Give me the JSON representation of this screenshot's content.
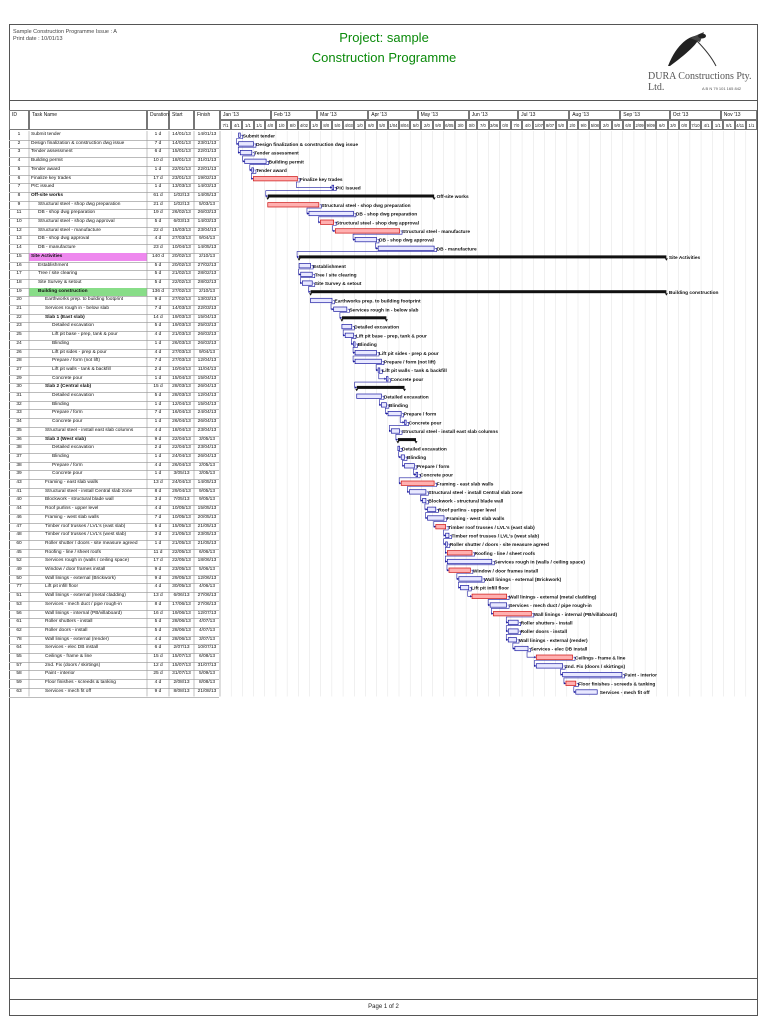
{
  "header": {
    "left_line1": "Sample Construction Programme  Issue : A",
    "left_line2": "Print date : 10/01/13",
    "title_line1": "Project: sample",
    "title_line2": "Construction Programme",
    "company": "DURA Constructions Pty. Ltd.",
    "abn": "A B N 79 101 165 842"
  },
  "columns": {
    "id": "ID",
    "name": "Task Name",
    "duration": "Duration",
    "start": "Start",
    "finish": "Finish"
  },
  "months": [
    "Jan '13",
    "Feb '13",
    "Mar '13",
    "Apr '13",
    "May '13",
    "Jun '13",
    "Jul '13",
    "Aug '13",
    "Sep '13",
    "Oct '13",
    "Nov '13"
  ],
  "weeks": [
    "7/1",
    "4/1",
    "1/1",
    "1/1",
    "4/0",
    "1/0",
    "8/0",
    "4/02",
    "1/0",
    "8/0",
    "5/0",
    "4/03",
    "1/0",
    "8/0",
    "5/0",
    "1/04",
    "8/04",
    "5/0",
    "2/0",
    "9/0",
    "6/05",
    "3/0",
    "0/0",
    "7/0",
    "3/06",
    "0/0",
    "7/0",
    "4/0",
    "1/07",
    "8/07",
    "5/0",
    "2/0",
    "9/0",
    "5/08",
    "2/0",
    "9/0",
    "6/0",
    "2/09",
    "9/09",
    "6/0",
    "3/0",
    "0/0",
    "7/10",
    "4/1",
    "1/1",
    "8/1",
    "4/11",
    "1/1"
  ],
  "tasks": [
    {
      "id": "1",
      "name": "Submit tender",
      "indent": 0,
      "dur": "1 d",
      "start": "14/01/13",
      "finish": "14/01/13",
      "label": "Submit tender",
      "s": 11.3,
      "e": 12.3,
      "kind": "task"
    },
    {
      "id": "2",
      "name": "Design finalization & construction dwg issue",
      "indent": 0,
      "dur": "7 d",
      "start": "14/01/13",
      "finish": "23/01/13",
      "label": "Design finalization & construction dwg issue",
      "s": 11.3,
      "e": 20.3,
      "kind": "task"
    },
    {
      "id": "3",
      "name": "Tender assessment",
      "indent": 0,
      "dur": "6 d",
      "start": "15/01/13",
      "finish": "22/01/13",
      "label": "Tender assessment",
      "s": 12.3,
      "e": 19.3,
      "kind": "task"
    },
    {
      "id": "4",
      "name": "Building permit",
      "indent": 0,
      "dur": "10 d",
      "start": "18/01/13",
      "finish": "31/01/13",
      "label": "Building permit",
      "s": 15,
      "e": 28,
      "kind": "task"
    },
    {
      "id": "5",
      "name": "Tender award",
      "indent": 0,
      "dur": "1 d",
      "start": "22/01/13",
      "finish": "22/01/13",
      "label": "Tender award",
      "s": 19.3,
      "e": 20.3,
      "kind": "task"
    },
    {
      "id": "6",
      "name": "Finalize key trades",
      "indent": 0,
      "dur": "17 d",
      "start": "23/01/13",
      "finish": "19/02/13",
      "label": "Finalize key trades",
      "s": 20.3,
      "e": 47,
      "kind": "crit"
    },
    {
      "id": "7",
      "name": "PIC issued",
      "indent": 0,
      "dur": "1 d",
      "start": "13/03/13",
      "finish": "14/03/13",
      "label": "PIC issued",
      "s": 68,
      "e": 69,
      "kind": "task"
    },
    {
      "id": "8",
      "name": "Off-site works",
      "indent": 0,
      "dur": "61 d",
      "start": "1/02/13",
      "finish": "14/05/13",
      "label": "Off-site works",
      "s": 29,
      "e": 130,
      "kind": "summary"
    },
    {
      "id": "9",
      "name": "Structural steel - shop dwg preparation",
      "indent": 1,
      "dur": "21 d",
      "start": "1/02/13",
      "finish": "5/03/13",
      "label": "Structural steel - shop dwg preparation",
      "s": 29,
      "e": 60,
      "kind": "crit"
    },
    {
      "id": "11",
      "name": "DB - shop dwg preparation",
      "indent": 1,
      "dur": "19 d",
      "start": "26/02/13",
      "finish": "26/03/13",
      "label": "DB - shop dwg preparation",
      "s": 54,
      "e": 81,
      "kind": "task"
    },
    {
      "id": "10",
      "name": "Structural steel - shop dwg approval",
      "indent": 1,
      "dur": "5 d",
      "start": "6/03/13",
      "finish": "14/03/13",
      "label": "Structural steel - shop dwg approval",
      "s": 61,
      "e": 69,
      "kind": "crit"
    },
    {
      "id": "12",
      "name": "Structural steel - manufacture",
      "indent": 1,
      "dur": "22 d",
      "start": "15/03/13",
      "finish": "23/04/13",
      "label": "Structural steel - manufacture",
      "s": 70,
      "e": 109,
      "kind": "crit"
    },
    {
      "id": "13",
      "name": "DB - shop dwg approval",
      "indent": 1,
      "dur": "4 d",
      "start": "27/03/13",
      "finish": "9/04/13",
      "label": "DB - shop dwg approval",
      "s": 82,
      "e": 95,
      "kind": "task"
    },
    {
      "id": "14",
      "name": "DB - manufacture",
      "indent": 1,
      "dur": "23 d",
      "start": "10/04/13",
      "finish": "14/05/13",
      "label": "DB - manufacture",
      "s": 96,
      "e": 130,
      "kind": "task"
    },
    {
      "id": "15",
      "name": "Site Activities",
      "indent": 0,
      "dur": "140 d",
      "start": "20/02/13",
      "finish": "2/10/13",
      "label": "Site Activities",
      "s": 48,
      "e": 271,
      "kind": "summary",
      "hl": "#ee88ee"
    },
    {
      "id": "16",
      "name": "Establishment",
      "indent": 1,
      "dur": "5 d",
      "start": "20/02/13",
      "finish": "27/02/13",
      "label": "Establishment",
      "s": 48,
      "e": 55,
      "kind": "task"
    },
    {
      "id": "17",
      "name": "Tree / site clearing",
      "indent": 1,
      "dur": "5 d",
      "start": "21/02/13",
      "finish": "28/02/13",
      "label": "Tree / site clearing",
      "s": 49,
      "e": 56,
      "kind": "task"
    },
    {
      "id": "18",
      "name": "Site Survey & setout",
      "indent": 1,
      "dur": "5 d",
      "start": "22/02/13",
      "finish": "28/02/13",
      "label": "Site Survey & setout",
      "s": 50,
      "e": 56,
      "kind": "task"
    },
    {
      "id": "19",
      "name": "Building construction",
      "indent": 1,
      "dur": "136 d",
      "start": "27/02/13",
      "finish": "2/10/13",
      "label": "Building construction",
      "s": 55,
      "e": 271,
      "kind": "summary",
      "hl": "#88dd88"
    },
    {
      "id": "20",
      "name": "Earthworks prep. to building footprint",
      "indent": 2,
      "dur": "9 d",
      "start": "27/02/13",
      "finish": "13/03/13",
      "label": "Earthworks prep. to building footprint",
      "s": 55,
      "e": 68,
      "kind": "task"
    },
    {
      "id": "21",
      "name": "Services rough in - below slab",
      "indent": 2,
      "dur": "7 d",
      "start": "14/03/13",
      "finish": "22/03/13",
      "label": "Services rough in - below slab",
      "s": 69,
      "e": 77,
      "kind": "task"
    },
    {
      "id": "22",
      "name": "Slab 1 (East slab)",
      "indent": 2,
      "dur": "14 d",
      "start": "19/03/13",
      "finish": "15/04/13",
      "label": "",
      "s": 74,
      "e": 101,
      "kind": "summary"
    },
    {
      "id": "23",
      "name": "Detailed excavation",
      "indent": 3,
      "dur": "5 d",
      "start": "19/03/13",
      "finish": "25/03/13",
      "label": "Detailed excavation",
      "s": 74,
      "e": 80,
      "kind": "task"
    },
    {
      "id": "25",
      "name": "Lift pit base - prep, tank & pour",
      "indent": 3,
      "dur": "4 d",
      "start": "21/03/13",
      "finish": "26/03/13",
      "label": "Lift pit base - prep, tank & pour",
      "s": 76,
      "e": 81,
      "kind": "task"
    },
    {
      "id": "24",
      "name": "Blinding",
      "indent": 3,
      "dur": "1 d",
      "start": "26/03/13",
      "finish": "26/03/13",
      "label": "Blinding",
      "s": 81,
      "e": 82,
      "kind": "task"
    },
    {
      "id": "26",
      "name": "Lift pit sides - prep & pour",
      "indent": 3,
      "dur": "4 d",
      "start": "27/03/13",
      "finish": "9/04/13",
      "label": "Lift pit sides - prep & pour",
      "s": 82,
      "e": 95,
      "kind": "task"
    },
    {
      "id": "28",
      "name": "Prepare / form (not lift)",
      "indent": 3,
      "dur": "7 d",
      "start": "27/03/13",
      "finish": "12/04/13",
      "label": "Prepare / form (not lift)",
      "s": 82,
      "e": 98,
      "kind": "task"
    },
    {
      "id": "27",
      "name": "Lift pit walls - tank & backfill",
      "indent": 3,
      "dur": "2 d",
      "start": "10/04/13",
      "finish": "11/04/13",
      "label": "Lift pit walls - tank & backfill",
      "s": 96,
      "e": 97,
      "kind": "task"
    },
    {
      "id": "29",
      "name": "Concrete pour",
      "indent": 3,
      "dur": "1 d",
      "start": "15/04/13",
      "finish": "15/04/13",
      "label": "Concrete pour",
      "s": 101,
      "e": 102,
      "kind": "task"
    },
    {
      "id": "30",
      "name": "Slab 2 (Central slab)",
      "indent": 2,
      "dur": "15 d",
      "start": "28/03/13",
      "finish": "26/04/13",
      "label": "",
      "s": 83,
      "e": 112,
      "kind": "summary"
    },
    {
      "id": "31",
      "name": "Detailed excavation",
      "indent": 3,
      "dur": "5 d",
      "start": "28/03/13",
      "finish": "12/04/13",
      "label": "Detailed excavation",
      "s": 83,
      "e": 98,
      "kind": "task"
    },
    {
      "id": "32",
      "name": "Blinding",
      "indent": 3,
      "dur": "1 d",
      "start": "12/04/13",
      "finish": "15/04/13",
      "label": "Blinding",
      "s": 98,
      "e": 101,
      "kind": "task"
    },
    {
      "id": "33",
      "name": "Prepare / form",
      "indent": 3,
      "dur": "7 d",
      "start": "16/04/13",
      "finish": "24/04/13",
      "label": "Prepare / form",
      "s": 102,
      "e": 110,
      "kind": "task"
    },
    {
      "id": "34",
      "name": "Concrete pour",
      "indent": 3,
      "dur": "1 d",
      "start": "26/04/13",
      "finish": "26/04/13",
      "label": "Concrete pour",
      "s": 112,
      "e": 113,
      "kind": "task"
    },
    {
      "id": "35",
      "name": "Structural steel - install east slab columns",
      "indent": 2,
      "dur": "4 d",
      "start": "18/04/13",
      "finish": "23/04/13",
      "label": "Structural steel - install east slab columns",
      "s": 104,
      "e": 109,
      "kind": "task"
    },
    {
      "id": "36",
      "name": "Slab 3 (West slab)",
      "indent": 2,
      "dur": "9 d",
      "start": "22/04/13",
      "finish": "3/05/13",
      "label": "",
      "s": 108,
      "e": 119,
      "kind": "summary"
    },
    {
      "id": "38",
      "name": "Detailed excavation",
      "indent": 3,
      "dur": "2 d",
      "start": "22/04/13",
      "finish": "23/04/13",
      "label": "Detailed excavation",
      "s": 108,
      "e": 109,
      "kind": "task"
    },
    {
      "id": "37",
      "name": "Blinding",
      "indent": 3,
      "dur": "1 d",
      "start": "24/04/13",
      "finish": "26/04/13",
      "label": "Blinding",
      "s": 110,
      "e": 112,
      "kind": "task"
    },
    {
      "id": "38",
      "name": "Prepare / form",
      "indent": 3,
      "dur": "4 d",
      "start": "26/04/13",
      "finish": "2/05/13",
      "label": "Prepare / form",
      "s": 112,
      "e": 118,
      "kind": "task"
    },
    {
      "id": "39",
      "name": "Concrete pour",
      "indent": 3,
      "dur": "1 d",
      "start": "3/05/13",
      "finish": "3/05/13",
      "label": "Concrete pour",
      "s": 119,
      "e": 120,
      "kind": "task"
    },
    {
      "id": "43",
      "name": "Framing - east slab walls",
      "indent": 2,
      "dur": "13 d",
      "start": "24/04/13",
      "finish": "14/05/13",
      "label": "Framing - east slab walls",
      "s": 110,
      "e": 130,
      "kind": "crit"
    },
    {
      "id": "41",
      "name": "Structural steel - install Central slab zone",
      "indent": 2,
      "dur": "8 d",
      "start": "29/04/13",
      "finish": "9/05/13",
      "label": "Structural steel - install Central slab zone",
      "s": 115,
      "e": 125,
      "kind": "task"
    },
    {
      "id": "40",
      "name": "Blockwork - structural blade wall",
      "indent": 2,
      "dur": "3 d",
      "start": "7/05/13",
      "finish": "9/05/13",
      "label": "Blockwork - structural blade wall",
      "s": 123,
      "e": 125,
      "kind": "task"
    },
    {
      "id": "44",
      "name": "Roof purlins - upper level",
      "indent": 2,
      "dur": "4 d",
      "start": "10/05/13",
      "finish": "15/05/13",
      "label": "Roof purlins - upper level",
      "s": 126,
      "e": 131,
      "kind": "task"
    },
    {
      "id": "46",
      "name": "Framing - west slab walls",
      "indent": 2,
      "dur": "7 d",
      "start": "10/05/13",
      "finish": "20/05/13",
      "label": "Framing - west slab walls",
      "s": 126,
      "e": 136,
      "kind": "task"
    },
    {
      "id": "47",
      "name": "Timber roof trusses / LVL's (east slab)",
      "indent": 2,
      "dur": "5 d",
      "start": "15/05/13",
      "finish": "21/05/13",
      "label": "Timber roof trusses / LVL's (east slab)",
      "s": 131,
      "e": 137,
      "kind": "crit"
    },
    {
      "id": "48",
      "name": "Timber roof trusses / LVL's (west slab)",
      "indent": 2,
      "dur": "3 d",
      "start": "21/05/13",
      "finish": "23/05/13",
      "label": "Timber roof trusses / LVL's (west slab)",
      "s": 137,
      "e": 139,
      "kind": "task"
    },
    {
      "id": "60",
      "name": "Roller shutter / doors - site measure agreed",
      "indent": 2,
      "dur": "1 d",
      "start": "21/05/13",
      "finish": "21/05/13",
      "label": "Roller shutter / doors - site measure agreed",
      "s": 137,
      "e": 138,
      "kind": "task"
    },
    {
      "id": "45",
      "name": "Roofing - line / sheet roofs",
      "indent": 2,
      "dur": "11 d",
      "start": "22/05/13",
      "finish": "6/06/13",
      "label": "Roofing - line / sheet roofs",
      "s": 138,
      "e": 153,
      "kind": "crit"
    },
    {
      "id": "52",
      "name": "Services rough in (walls / ceiling space)",
      "indent": 2,
      "dur": "17 d",
      "start": "22/05/13",
      "finish": "18/06/13",
      "label": "Services rough in (walls / ceiling space)",
      "s": 138,
      "e": 165,
      "kind": "task"
    },
    {
      "id": "49",
      "name": "Window / door frames install",
      "indent": 2,
      "dur": "9 d",
      "start": "23/05/13",
      "finish": "5/06/13",
      "label": "Window / door frames install",
      "s": 139,
      "e": 152,
      "kind": "crit"
    },
    {
      "id": "50",
      "name": "Wall linings - external (Brickwork)",
      "indent": 2,
      "dur": "9 d",
      "start": "29/05/13",
      "finish": "12/06/13",
      "label": "Wall linings - external (Brickwork)",
      "s": 145,
      "e": 159,
      "kind": "task"
    },
    {
      "id": "77",
      "name": "Lift pit infill floor",
      "indent": 2,
      "dur": "4 d",
      "start": "30/05/13",
      "finish": "4/06/13",
      "label": "Lift pit infill floor",
      "s": 146,
      "e": 151,
      "kind": "task"
    },
    {
      "id": "51",
      "name": "Wall linings - external (metal cladding)",
      "indent": 2,
      "dur": "13 d",
      "start": "6/06/13",
      "finish": "27/06/13",
      "label": "Wall linings - external (metal cladding)",
      "s": 153,
      "e": 174,
      "kind": "crit"
    },
    {
      "id": "53",
      "name": "Services - mech duct / pipe rough-in",
      "indent": 2,
      "dur": "8 d",
      "start": "17/06/13",
      "finish": "27/06/13",
      "label": "Services - mech duct / pipe rough-in",
      "s": 164,
      "e": 174,
      "kind": "task"
    },
    {
      "id": "56",
      "name": "Wall linings - internal (PB/villaboard)",
      "indent": 2,
      "dur": "16 d",
      "start": "19/06/13",
      "finish": "12/07/13",
      "label": "Wall linings - internal (PB/villaboard)",
      "s": 166,
      "e": 189,
      "kind": "crit"
    },
    {
      "id": "61",
      "name": "Roller shutters - install",
      "indent": 2,
      "dur": "5 d",
      "start": "28/06/13",
      "finish": "4/07/13",
      "label": "Roller shutters - install",
      "s": 175,
      "e": 181,
      "kind": "task"
    },
    {
      "id": "62",
      "name": "Roller doors - install",
      "indent": 2,
      "dur": "5 d",
      "start": "28/06/13",
      "finish": "4/07/13",
      "label": "Roller doors - install",
      "s": 175,
      "e": 181,
      "kind": "task"
    },
    {
      "id": "78",
      "name": "Wall linings - external (render)",
      "indent": 2,
      "dur": "4 d",
      "start": "28/06/13",
      "finish": "3/07/13",
      "label": "Wall linings - external (render)",
      "s": 175,
      "e": 180,
      "kind": "task"
    },
    {
      "id": "64",
      "name": "Services - elec DB install",
      "indent": 2,
      "dur": "6 d",
      "start": "2/07/13",
      "finish": "10/07/13",
      "label": "Services - elec DB install",
      "s": 179,
      "e": 187,
      "kind": "task"
    },
    {
      "id": "55",
      "name": "Ceilings - frame & line",
      "indent": 2,
      "dur": "15 d",
      "start": "15/07/13",
      "finish": "6/08/13",
      "label": "Ceilings - frame & line",
      "s": 192,
      "e": 214,
      "kind": "crit"
    },
    {
      "id": "57",
      "name": "2nd. Fix (doors / skirtings)",
      "indent": 2,
      "dur": "12 d",
      "start": "15/07/13",
      "finish": "31/07/13",
      "label": "2nd. Fix (doors / skirtings)",
      "s": 192,
      "e": 208,
      "kind": "task"
    },
    {
      "id": "58",
      "name": "Paint - interior",
      "indent": 2,
      "dur": "25 d",
      "start": "31/07/13",
      "finish": "5/09/13",
      "label": "Paint - interior",
      "s": 208,
      "e": 244,
      "kind": "task"
    },
    {
      "id": "59",
      "name": "Floor finishes - screeds & tanking",
      "indent": 2,
      "dur": "4 d",
      "start": "2/08/13",
      "finish": "8/08/13",
      "label": "Floor finishes - screeds & tanking",
      "s": 210,
      "e": 216,
      "kind": "crit"
    },
    {
      "id": "63",
      "name": "Services - mech fit off",
      "indent": 2,
      "dur": "9 d",
      "start": "8/08/13",
      "finish": "21/08/13",
      "label": "Services - mech fit off",
      "s": 216,
      "e": 229,
      "kind": "task"
    }
  ],
  "footer": {
    "page": "Page 1 of 2"
  },
  "colors": {
    "task_fill": "#e8e8ff",
    "task_border": "#1a1aa0",
    "crit_fill": "#ffb0b0",
    "crit_border": "#cc1111",
    "summary": "#111111",
    "link": "#1a1aa0"
  }
}
